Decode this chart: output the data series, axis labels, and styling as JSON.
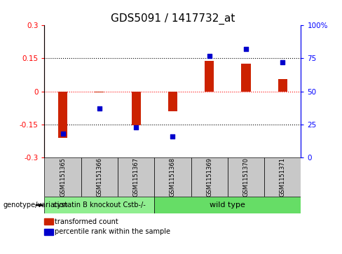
{
  "title": "GDS5091 / 1417732_at",
  "samples": [
    "GSM1151365",
    "GSM1151366",
    "GSM1151367",
    "GSM1151368",
    "GSM1151369",
    "GSM1151370",
    "GSM1151371"
  ],
  "red_values": [
    -0.21,
    -0.005,
    -0.155,
    -0.09,
    0.14,
    0.125,
    0.055
  ],
  "blue_values": [
    18,
    37,
    23,
    16,
    77,
    82,
    72
  ],
  "ylim_left": [
    -0.3,
    0.3
  ],
  "ylim_right": [
    0,
    100
  ],
  "yticks_left": [
    -0.3,
    -0.15,
    0,
    0.15,
    0.3
  ],
  "yticks_right": [
    0,
    25,
    50,
    75,
    100
  ],
  "ytick_labels_left": [
    "-0.3",
    "-0.15",
    "0",
    "0.15",
    "0.3"
  ],
  "ytick_labels_right": [
    "0",
    "25",
    "50",
    "75",
    "100%"
  ],
  "group1_label": "cystatin B knockout Cstb-/-",
  "group2_label": "wild type",
  "group1_n": 3,
  "group2_n": 4,
  "group1_color": "#90EE90",
  "group2_color": "#66DD66",
  "bar_color": "#CC2200",
  "dot_color": "#0000CC",
  "legend_red_label": "transformed count",
  "legend_blue_label": "percentile rank within the sample",
  "genotype_label": "genotype/variation",
  "title_fontsize": 11,
  "tick_fontsize": 7.5,
  "sample_label_fontsize": 6,
  "group_label_fontsize": 7,
  "bar_width": 0.25
}
